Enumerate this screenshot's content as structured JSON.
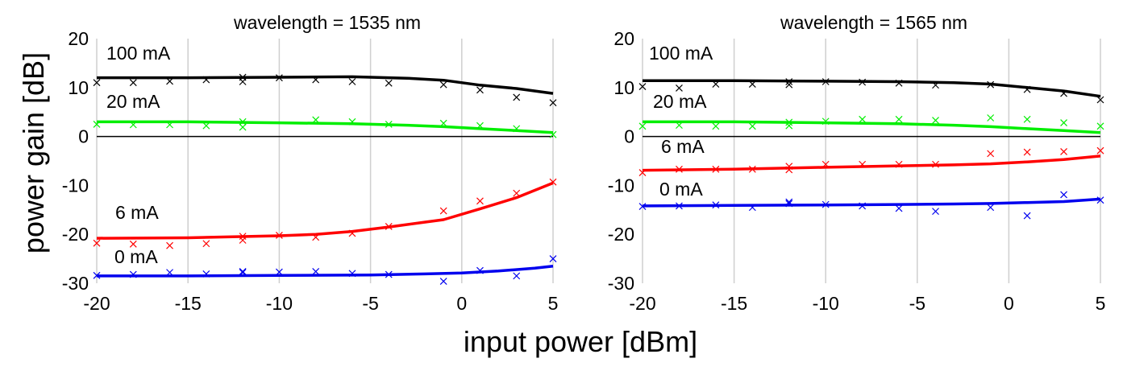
{
  "figure": {
    "ylabel": "power gain [dB]",
    "xlabel": "input power [dBm]"
  },
  "chart_data": [
    {
      "type": "line",
      "title": "wavelength = 1535 nm",
      "xlim": [
        -20,
        5
      ],
      "ylim": [
        -30,
        20
      ],
      "xticks": [
        -20,
        -15,
        -10,
        -5,
        0,
        5
      ],
      "yticks": [
        20,
        10,
        0,
        -10,
        -20,
        -30
      ],
      "xtick_labels": [
        "-20",
        "-15",
        "-10",
        "-5",
        "0",
        "5"
      ],
      "ytick_labels": [
        "20",
        "10",
        "0",
        "-10",
        "-20",
        "-30"
      ],
      "grid": true,
      "series": [
        {
          "name": "100 mA",
          "color": "#000000",
          "fit": {
            "x": [
              -20,
              -15,
              -10,
              -6,
              -3,
              -1,
              1,
              3,
              5
            ],
            "y": [
              12.0,
              12.0,
              12.1,
              12.2,
              11.9,
              11.5,
              10.5,
              9.8,
              8.8
            ]
          },
          "measured": {
            "x": [
              -20,
              -18,
              -16,
              -14,
              -12,
              -12,
              -10,
              -8,
              -6,
              -4,
              -1,
              1,
              3,
              5
            ],
            "y": [
              11.0,
              11.0,
              11.3,
              11.6,
              12.1,
              11.2,
              12.0,
              11.6,
              11.2,
              10.9,
              10.6,
              9.5,
              8.0,
              6.9
            ]
          }
        },
        {
          "name": "20 mA",
          "color": "#00ee00",
          "fit": {
            "x": [
              -20,
              -15,
              -10,
              -6,
              -3,
              -1,
              1,
              3,
              5
            ],
            "y": [
              3.0,
              3.0,
              2.8,
              2.6,
              2.3,
              2.0,
              1.6,
              1.2,
              0.8
            ]
          },
          "measured": {
            "x": [
              -20,
              -18,
              -16,
              -14,
              -12,
              -12,
              -8,
              -6,
              -4,
              -1,
              1,
              3,
              5
            ],
            "y": [
              2.5,
              2.4,
              2.4,
              2.2,
              3.0,
              1.9,
              3.4,
              3.0,
              2.5,
              2.7,
              2.2,
              1.6,
              0.4
            ]
          }
        },
        {
          "name": "6 mA",
          "color": "#ff0000",
          "fit": {
            "x": [
              -20,
              -15,
              -10,
              -8,
              -6,
              -4,
              -2,
              -1,
              1,
              3,
              5
            ],
            "y": [
              -20.8,
              -20.7,
              -20.3,
              -20.0,
              -19.4,
              -18.5,
              -17.5,
              -17.0,
              -14.8,
              -12.5,
              -9.5
            ]
          },
          "measured": {
            "x": [
              -20,
              -18,
              -16,
              -14,
              -12,
              -12,
              -10,
              -8,
              -6,
              -4,
              -1,
              1,
              3,
              5
            ],
            "y": [
              -21.8,
              -22.0,
              -22.3,
              -21.9,
              -20.4,
              -21.2,
              -20.2,
              -20.6,
              -19.8,
              -18.4,
              -15.2,
              -13.2,
              -11.6,
              -9.3
            ]
          }
        },
        {
          "name": "0 mA",
          "color": "#0000ee",
          "fit": {
            "x": [
              -20,
              -15,
              -10,
              -5,
              -2,
              0,
              2,
              4,
              5
            ],
            "y": [
              -28.5,
              -28.5,
              -28.4,
              -28.3,
              -28.1,
              -27.9,
              -27.5,
              -26.9,
              -26.5
            ]
          },
          "measured": {
            "x": [
              -20,
              -18,
              -16,
              -14,
              -12,
              -12,
              -10,
              -8,
              -6,
              -4,
              -1,
              1,
              3,
              5
            ],
            "y": [
              -28.4,
              -28.2,
              -27.8,
              -28.1,
              -27.8,
              -27.6,
              -27.7,
              -27.6,
              -28.0,
              -28.2,
              -29.6,
              -27.4,
              -28.5,
              -25.0
            ]
          }
        }
      ]
    },
    {
      "type": "line",
      "title": "wavelength = 1565 nm",
      "xlim": [
        -20,
        5
      ],
      "ylim": [
        -30,
        20
      ],
      "xticks": [
        -20,
        -15,
        -10,
        -5,
        0,
        5
      ],
      "yticks": [
        20,
        10,
        0,
        -10,
        -20,
        -30
      ],
      "xtick_labels": [
        "-20",
        "-15",
        "-10",
        "-5",
        "0",
        "5"
      ],
      "ytick_labels": [
        "20",
        "10",
        "0",
        "-10",
        "-20",
        "-30"
      ],
      "grid": true,
      "series": [
        {
          "name": "100 mA",
          "color": "#000000",
          "fit": {
            "x": [
              -20,
              -15,
              -10,
              -6,
              -3,
              -1,
              1,
              3,
              5
            ],
            "y": [
              11.4,
              11.4,
              11.3,
              11.2,
              11.0,
              10.7,
              10.0,
              9.3,
              8.2
            ]
          },
          "measured": {
            "x": [
              -20,
              -18,
              -16,
              -14,
              -12,
              -12,
              -10,
              -8,
              -6,
              -4,
              -1,
              1,
              3,
              5
            ],
            "y": [
              10.2,
              9.9,
              10.7,
              10.7,
              11.2,
              10.6,
              11.2,
              11.1,
              10.9,
              10.5,
              10.6,
              9.6,
              8.8,
              7.5
            ]
          }
        },
        {
          "name": "20 mA",
          "color": "#00ee00",
          "fit": {
            "x": [
              -20,
              -15,
              -10,
              -6,
              -3,
              -1,
              1,
              3,
              5
            ],
            "y": [
              3.0,
              3.0,
              2.8,
              2.6,
              2.3,
              2.0,
              1.6,
              1.2,
              0.8
            ]
          },
          "measured": {
            "x": [
              -20,
              -18,
              -16,
              -14,
              -12,
              -12,
              -10,
              -8,
              -6,
              -4,
              -1,
              1,
              3,
              5
            ],
            "y": [
              2.1,
              2.3,
              2.1,
              2.1,
              2.9,
              2.2,
              3.1,
              3.5,
              3.5,
              3.3,
              3.8,
              3.5,
              2.8,
              2.1
            ]
          }
        },
        {
          "name": "6 mA",
          "color": "#ff0000",
          "fit": {
            "x": [
              -20,
              -15,
              -10,
              -6,
              -3,
              -1,
              1,
              3,
              5
            ],
            "y": [
              -6.9,
              -6.7,
              -6.3,
              -6.0,
              -5.8,
              -5.6,
              -5.2,
              -4.7,
              -4.0
            ]
          },
          "measured": {
            "x": [
              -20,
              -18,
              -16,
              -14,
              -12,
              -12,
              -10,
              -8,
              -6,
              -4,
              -1,
              1,
              3,
              5
            ],
            "y": [
              -7.4,
              -6.7,
              -6.7,
              -6.7,
              -6.1,
              -6.8,
              -5.7,
              -5.7,
              -5.7,
              -5.7,
              -3.5,
              -3.2,
              -3.1,
              -2.9
            ]
          }
        },
        {
          "name": "0 mA",
          "color": "#0000ee",
          "fit": {
            "x": [
              -20,
              -15,
              -10,
              -6,
              -3,
              -1,
              1,
              3,
              5
            ],
            "y": [
              -14.2,
              -14.1,
              -14.0,
              -13.9,
              -13.8,
              -13.7,
              -13.5,
              -13.3,
              -12.8
            ]
          },
          "measured": {
            "x": [
              -20,
              -18,
              -16,
              -14,
              -12,
              -12,
              -10,
              -8,
              -6,
              -4,
              -1,
              1,
              3,
              5
            ],
            "y": [
              -14.3,
              -14.2,
              -14.0,
              -14.5,
              -13.7,
              -13.4,
              -13.9,
              -14.2,
              -14.7,
              -15.3,
              -14.5,
              -16.2,
              -11.9,
              -13.0
            ]
          }
        }
      ]
    }
  ]
}
